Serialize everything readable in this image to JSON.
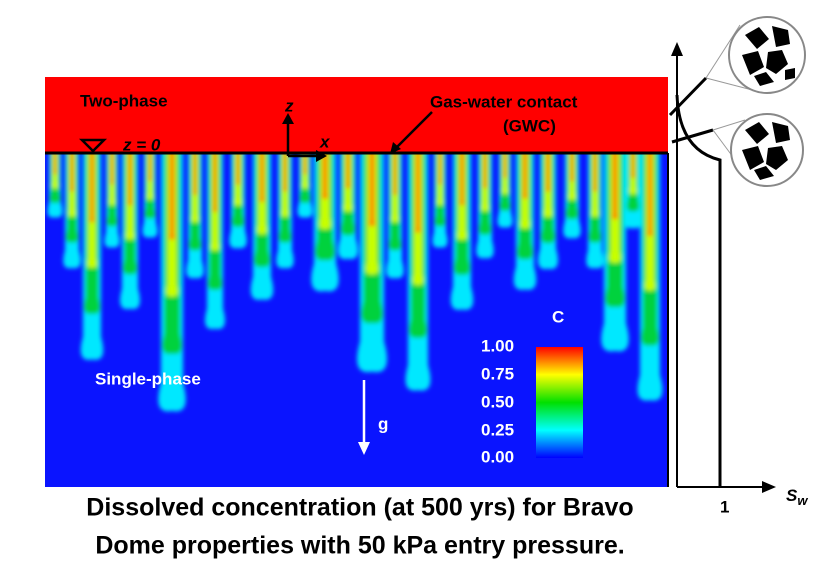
{
  "labels": {
    "two_phase": "Two-phase",
    "z0": "z = 0",
    "z_axis": "z",
    "x_axis": "x",
    "gwc": "Gas-water contact",
    "gwc_abbr": "(GWC)",
    "single_phase": "Single-phase",
    "gravity": "g"
  },
  "colorbar": {
    "title": "C",
    "ticks": [
      "1.00",
      "0.75",
      "0.50",
      "0.25",
      "0.00"
    ]
  },
  "saturation_axis": {
    "one": "1",
    "label": "S",
    "subscript": "w"
  },
  "caption": [
    "Dissolved concentration (at 500 yrs) for Bravo",
    "Dome properties with 50 kPa entry pressure."
  ]
}
